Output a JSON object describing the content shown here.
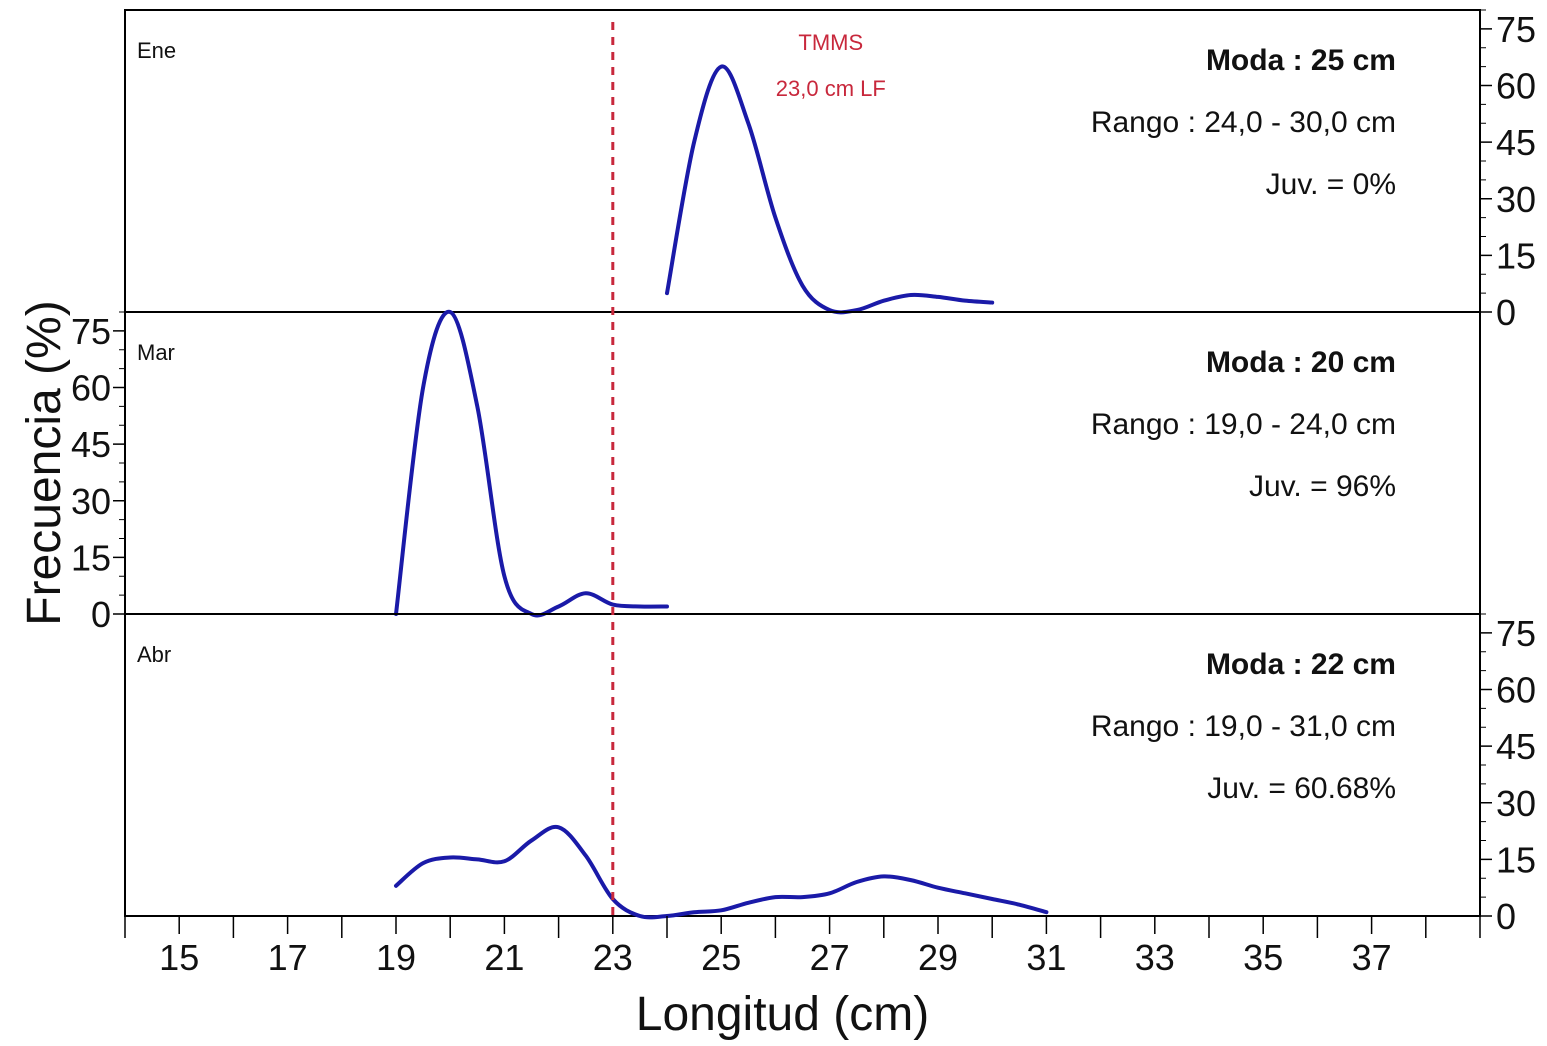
{
  "chart_data": {
    "type": "line",
    "xlabel": "Longitud (cm)",
    "ylabel": "Frecuencia (%)",
    "xlim": [
      14,
      39
    ],
    "x_ticks": [
      15,
      17,
      19,
      21,
      23,
      25,
      27,
      29,
      31,
      33,
      35,
      37
    ],
    "ylim": [
      0,
      80
    ],
    "y_ticks": [
      0,
      15,
      30,
      45,
      60,
      75
    ],
    "line_color": "#1a1aa8",
    "reference_line": {
      "x": 23,
      "label_line1": "TMMS",
      "label_line2": "23,0 cm LF",
      "color": "#c8283c"
    },
    "panels": [
      {
        "name": "Ene",
        "y_axis_side": "right",
        "moda": "Moda : 25 cm",
        "rango": "Rango : 24,0 - 30,0 cm",
        "juv": "Juv. = 0%",
        "series": {
          "x": [
            24,
            24.5,
            25,
            25.5,
            26,
            26.5,
            27,
            27.5,
            28,
            28.5,
            29,
            29.5,
            30
          ],
          "y": [
            5,
            45,
            65,
            50,
            25,
            7,
            0.5,
            0.5,
            3,
            4.5,
            4,
            3,
            2.5
          ]
        }
      },
      {
        "name": "Mar",
        "y_axis_side": "left",
        "moda": "Moda : 20 cm",
        "rango": "Rango : 19,0 - 24,0 cm",
        "juv": "Juv. = 96%",
        "series": {
          "x": [
            19,
            19.5,
            20,
            20.5,
            21,
            21.5,
            22,
            22.5,
            23,
            23.5,
            24
          ],
          "y": [
            0,
            60,
            80,
            55,
            10,
            0,
            2,
            5.5,
            2.5,
            2,
            2
          ]
        }
      },
      {
        "name": "Abr",
        "y_axis_side": "right",
        "moda": "Moda : 22 cm",
        "rango": "Rango : 19,0 - 31,0 cm",
        "juv": "Juv. = 60.68%",
        "series": {
          "x": [
            19,
            19.5,
            20,
            20.5,
            21,
            21.5,
            22,
            22.5,
            23,
            23.5,
            24,
            24.5,
            25,
            25.5,
            26,
            26.5,
            27,
            27.5,
            28,
            28.5,
            29,
            29.5,
            30,
            30.5,
            31
          ],
          "y": [
            8,
            14,
            15.5,
            15,
            14.5,
            20,
            23.5,
            16,
            4.5,
            0,
            0,
            1,
            1.5,
            3.5,
            5,
            5,
            6,
            9,
            10.5,
            9.5,
            7.5,
            6,
            4.5,
            3,
            1
          ]
        }
      }
    ]
  }
}
